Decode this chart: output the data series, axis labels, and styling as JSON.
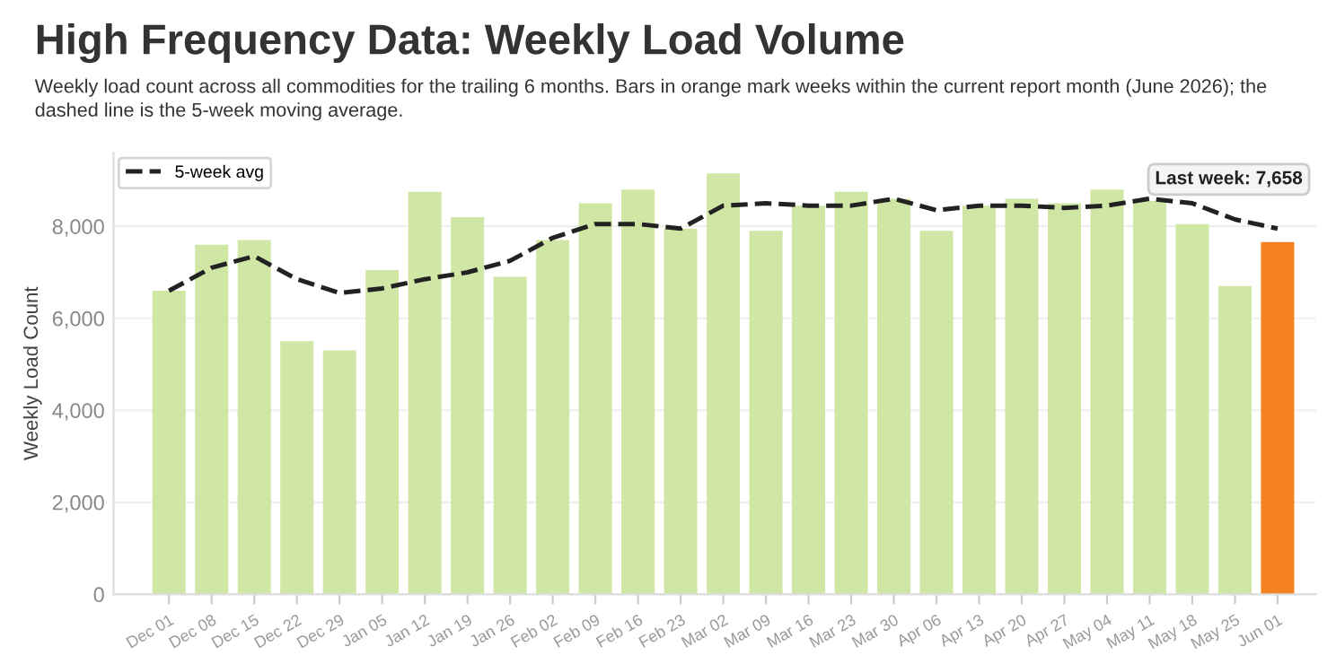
{
  "chart_data": {
    "type": "bar",
    "title": "High Frequency Data: Weekly Load Volume",
    "subtitle": "Weekly load count across all commodities for the trailing 6 months. Bars in orange mark weeks within the current report month (June 2026); the\ndashed line is the 5-week moving average.",
    "ylabel": "Weekly Load Count",
    "categories": [
      "Dec 01",
      "Dec 08",
      "Dec 15",
      "Dec 22",
      "Dec 29",
      "Jan 05",
      "Jan 12",
      "Jan 19",
      "Jan 26",
      "Feb 02",
      "Feb 09",
      "Feb 16",
      "Feb 23",
      "Mar 02",
      "Mar 09",
      "Mar 16",
      "Mar 23",
      "Mar 30",
      "Apr 06",
      "Apr 13",
      "Apr 20",
      "Apr 27",
      "May 04",
      "May 11",
      "May 18",
      "May 25",
      "Jun 01"
    ],
    "series": [
      {
        "colors": [
          "#d0e6a5",
          "#d0e6a5",
          "#d0e6a5",
          "#d0e6a5",
          "#d0e6a5",
          "#d0e6a5",
          "#d0e6a5",
          "#d0e6a5",
          "#d0e6a5",
          "#d0e6a5",
          "#d0e6a5",
          "#d0e6a5",
          "#d0e6a5",
          "#d0e6a5",
          "#d0e6a5",
          "#d0e6a5",
          "#d0e6a5",
          "#d0e6a5",
          "#d0e6a5",
          "#d0e6a5",
          "#d0e6a5",
          "#d0e6a5",
          "#d0e6a5",
          "#d0e6a5",
          "#d0e6a5",
          "#d0e6a5",
          "#f58220"
        ],
        "values": [
          6600,
          7600,
          7700,
          5500,
          5300,
          7050,
          8750,
          8200,
          6900,
          7700,
          8500,
          8800,
          7950,
          9150,
          7900,
          8450,
          8750,
          8600,
          7900,
          8450,
          8600,
          8500,
          8800,
          8550,
          8050,
          6700,
          7658
        ]
      },
      {
        "type": "line",
        "name": "5-week avg",
        "color": "#222222",
        "line_style": "dashed",
        "values": [
          6600,
          7100,
          7350,
          6850,
          6550,
          6650,
          6850,
          7000,
          7250,
          7750,
          8050,
          8050,
          7950,
          8450,
          8500,
          8450,
          8450,
          8600,
          8350,
          8450,
          8450,
          8400,
          8450,
          8600,
          8500,
          8150,
          7950
        ]
      }
    ],
    "annotations": [
      "Last week: 7,658"
    ],
    "ylim": [
      0,
      9600
    ],
    "yticks": [
      {
        "value": 0,
        "label": "0"
      },
      {
        "value": 2000,
        "label": "2,000"
      },
      {
        "value": 4000,
        "label": "4,000"
      },
      {
        "value": 6000,
        "label": "6,000"
      },
      {
        "value": 8000,
        "label": "8,000"
      }
    ],
    "grid": "y",
    "legend": "top left"
  }
}
